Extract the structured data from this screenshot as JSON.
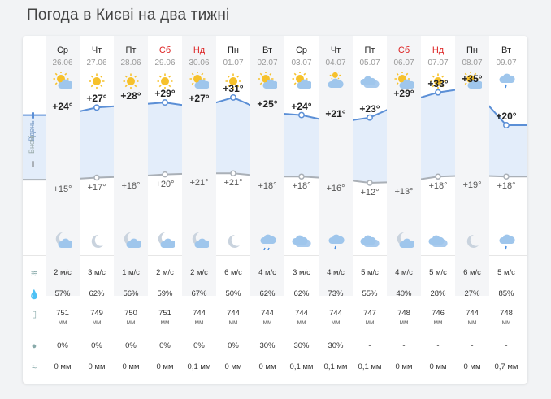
{
  "title": "Погода в Києві на два тижні",
  "side_labels": {
    "day": "Вдень",
    "night": "Вночі"
  },
  "days": [
    {
      "name": "Ср",
      "date": "26.06",
      "weekend": false,
      "day_icon": "sun-cloud",
      "night_icon": "moon-cloud",
      "t_day": "+24°",
      "t_night": "+15°",
      "wind": "2 м/с",
      "humidity": "57%",
      "pressure": "751",
      "pressure_unit": "мм",
      "precip_prob": "0%",
      "precip": "0 мм"
    },
    {
      "name": "Чт",
      "date": "27.06",
      "weekend": false,
      "day_icon": "sun",
      "night_icon": "moon",
      "t_day": "+27°",
      "t_night": "+17°",
      "wind": "3 м/с",
      "humidity": "62%",
      "pressure": "749",
      "pressure_unit": "мм",
      "precip_prob": "0%",
      "precip": "0 мм"
    },
    {
      "name": "Пт",
      "date": "28.06",
      "weekend": false,
      "day_icon": "sun",
      "night_icon": "moon-cloud",
      "t_day": "+28°",
      "t_night": "+18°",
      "wind": "1 м/с",
      "humidity": "56%",
      "pressure": "750",
      "pressure_unit": "мм",
      "precip_prob": "0%",
      "precip": "0 мм"
    },
    {
      "name": "Сб",
      "date": "29.06",
      "weekend": true,
      "day_icon": "sun",
      "night_icon": "moon-cloud",
      "t_day": "+29°",
      "t_night": "+20°",
      "wind": "2 м/с",
      "humidity": "59%",
      "pressure": "751",
      "pressure_unit": "мм",
      "precip_prob": "0%",
      "precip": "0 мм"
    },
    {
      "name": "Нд",
      "date": "30.06",
      "weekend": true,
      "day_icon": "sun-cloud",
      "night_icon": "moon-cloud",
      "t_day": "+27°",
      "t_night": "+21°",
      "wind": "2 м/с",
      "humidity": "67%",
      "pressure": "744",
      "pressure_unit": "мм",
      "precip_prob": "0%",
      "precip": "0,1 мм"
    },
    {
      "name": "Пн",
      "date": "01.07",
      "weekend": false,
      "day_icon": "sun",
      "night_icon": "moon",
      "t_day": "+31°",
      "t_night": "+21°",
      "wind": "6 м/с",
      "humidity": "50%",
      "pressure": "744",
      "pressure_unit": "мм",
      "precip_prob": "0%",
      "precip": "0 мм"
    },
    {
      "name": "Вт",
      "date": "02.07",
      "weekend": false,
      "day_icon": "sun-cloud",
      "night_icon": "rain",
      "t_day": "+25°",
      "t_night": "+18°",
      "wind": "4 м/с",
      "humidity": "62%",
      "pressure": "744",
      "pressure_unit": "мм",
      "precip_prob": "30%",
      "precip": "0 мм"
    },
    {
      "name": "Ср",
      "date": "03.07",
      "weekend": false,
      "day_icon": "sun-cloud",
      "night_icon": "cloud",
      "t_day": "+24°",
      "t_night": "+18°",
      "wind": "3 м/с",
      "humidity": "62%",
      "pressure": "744",
      "pressure_unit": "мм",
      "precip_prob": "30%",
      "precip": "0,1 мм"
    },
    {
      "name": "Чт",
      "date": "04.07",
      "weekend": false,
      "day_icon": "cloud-sun",
      "night_icon": "cloud-rain",
      "t_day": "+21°",
      "t_night": "+16°",
      "wind": "4 м/с",
      "humidity": "73%",
      "pressure": "744",
      "pressure_unit": "мм",
      "precip_prob": "30%",
      "precip": "0,1 мм"
    },
    {
      "name": "Пт",
      "date": "05.07",
      "weekend": false,
      "day_icon": "cloud",
      "night_icon": "cloud",
      "t_day": "+23°",
      "t_night": "+12°",
      "wind": "5 м/с",
      "humidity": "55%",
      "pressure": "747",
      "pressure_unit": "мм",
      "precip_prob": "-",
      "precip": "0,1 мм"
    },
    {
      "name": "Сб",
      "date": "06.07",
      "weekend": true,
      "day_icon": "sun-cloud",
      "night_icon": "moon-cloud",
      "t_day": "+29°",
      "t_night": "+13°",
      "wind": "4 м/с",
      "humidity": "40%",
      "pressure": "748",
      "pressure_unit": "мм",
      "precip_prob": "-",
      "precip": "0 мм"
    },
    {
      "name": "Нд",
      "date": "07.07",
      "weekend": true,
      "day_icon": "sun",
      "night_icon": "cloud",
      "t_day": "+33°",
      "t_night": "+18°",
      "wind": "5 м/с",
      "humidity": "28%",
      "pressure": "746",
      "pressure_unit": "мм",
      "precip_prob": "-",
      "precip": "0 мм"
    },
    {
      "name": "Пн",
      "date": "08.07",
      "weekend": false,
      "day_icon": "sun-cloud",
      "night_icon": "moon",
      "t_day": "+35°",
      "t_night": "+19°",
      "wind": "6 м/с",
      "humidity": "27%",
      "pressure": "744",
      "pressure_unit": "мм",
      "precip_prob": "-",
      "precip": "0 мм"
    },
    {
      "name": "Вт",
      "date": "09.07",
      "weekend": false,
      "day_icon": "rain-cloud",
      "night_icon": "cloud-rain",
      "t_day": "+20°",
      "t_night": "+18°",
      "wind": "5 м/с",
      "humidity": "85%",
      "pressure": "748",
      "pressure_unit": "мм",
      "precip_prob": "-",
      "precip": "0,7 мм"
    }
  ],
  "temps_day": [
    24,
    27,
    28,
    29,
    27,
    31,
    25,
    24,
    21,
    23,
    29,
    33,
    35,
    20
  ],
  "temps_night": [
    15,
    17,
    18,
    20,
    21,
    21,
    18,
    18,
    16,
    12,
    13,
    18,
    19,
    18
  ],
  "stat_icons": [
    "wind-icon",
    "humidity-icon",
    "pressure-icon",
    "precipitation-probability-icon",
    "precipitation-icon"
  ],
  "colors": {
    "day_line": "#5b8fd6",
    "day_fill": "#e3edfa",
    "night_line": "#aab0b7",
    "weekend": "#dd2222",
    "sun": "#f6c12b",
    "cloud": "#9fc6ec"
  }
}
